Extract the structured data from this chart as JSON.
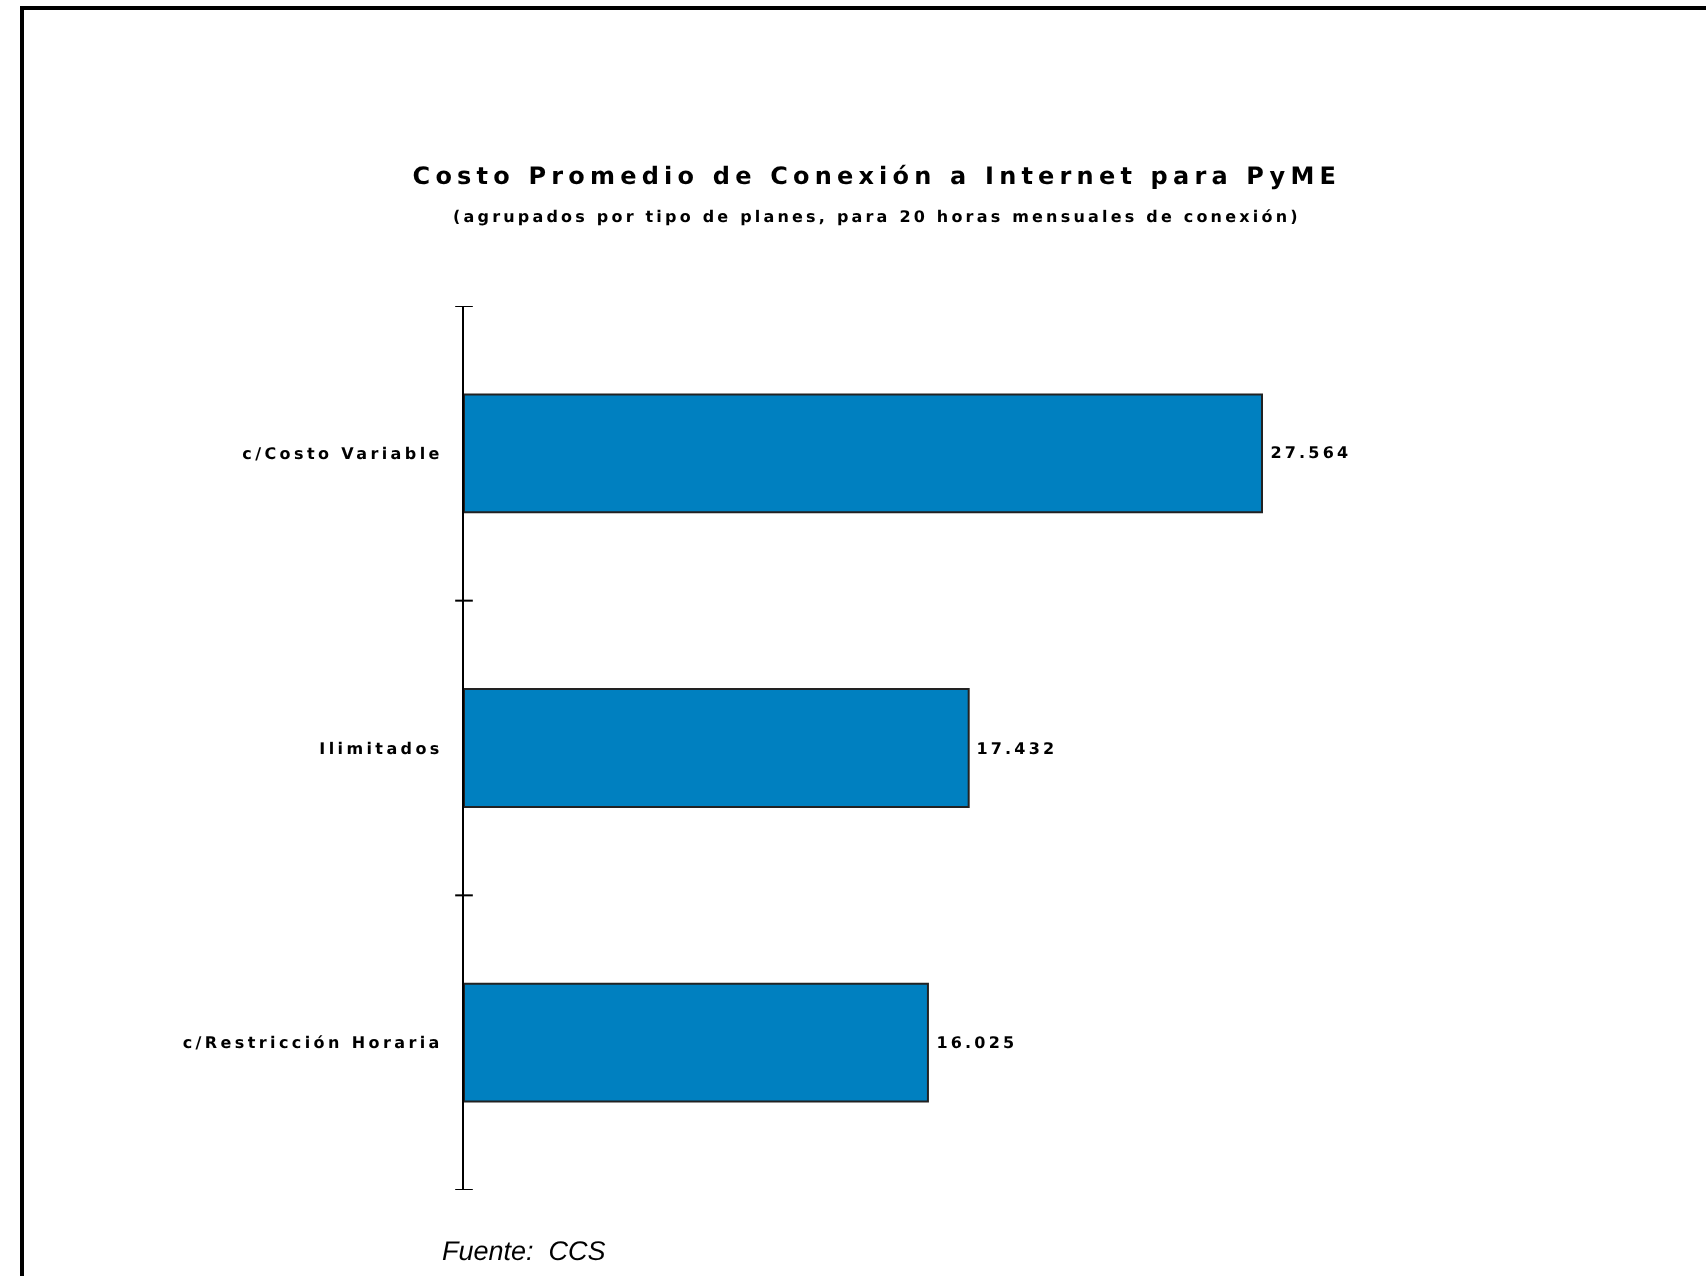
{
  "chart_data": {
    "type": "bar",
    "orientation": "horizontal",
    "title": "Costo Promedio de Conexión a Internet para PyME",
    "subtitle": "(agrupados por tipo de planes, para 20 horas mensuales de conexión)",
    "categories": [
      "c/Costo Variable",
      "Ilimitados",
      "c/Restricción Horaria"
    ],
    "values": [
      27.564,
      17.432,
      16.025
    ],
    "color": "#0080c0",
    "data_labels": true,
    "tick_labels": "y",
    "annotations": [
      "Fuente:  CCS"
    ]
  }
}
